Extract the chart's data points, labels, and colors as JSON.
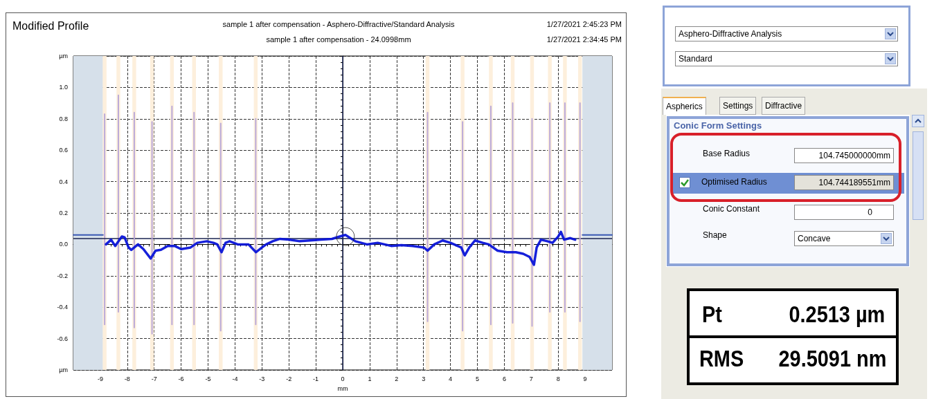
{
  "chart_data": [
    {
      "type": "line",
      "title": "Modified Profile",
      "subtitle": "sample 1 after compensation - Asphero-Diffractive/Standard Analysis\nsample 1 after compensation - 24.0998mm",
      "xlabel": "mm",
      "annotations": [
        "1/27/2021 2:45:23 PM",
        "1/27/2021 2:34:45 PM"
      ],
      "xlim": [
        -10,
        10
      ],
      "xticks": [
        -9,
        -8,
        -7,
        -6,
        -5,
        -4,
        -3,
        -2,
        -1,
        0,
        1,
        2,
        3,
        4,
        5,
        6,
        7,
        8,
        9
      ],
      "ylim": [
        -0.8,
        1.2
      ],
      "yticks": [
        {
          "value": -0.8,
          "label": "µm"
        },
        -0.6,
        -0.4,
        -0.2,
        {
          "value": 0,
          "label": "0.0"
        },
        0.2,
        0.4,
        0.6,
        0.8,
        {
          "value": 1,
          "label": "1.0"
        },
        {
          "value": 1.2,
          "label": "µm"
        }
      ],
      "grid": true,
      "line_style": "solid",
      "marker": "none",
      "ref_lines": [
        {
          "axis": "x",
          "value": 0,
          "color": "#1a2350"
        },
        {
          "axis": "y",
          "value": 0.045,
          "color": "#1a2350"
        }
      ],
      "bands": [
        {
          "axis": "x",
          "from": -10,
          "to": -8.9,
          "color": "#d6e0ea"
        },
        {
          "axis": "x",
          "from": 8.9,
          "to": 10,
          "color": "#d6e0ea"
        },
        {
          "axis": "x",
          "from": -8.91,
          "to": -8.77,
          "color": "#fdefdc"
        },
        {
          "axis": "x",
          "from": -8.4,
          "to": -8.26,
          "color": "#fdefdc"
        },
        {
          "axis": "x",
          "from": -7.81,
          "to": -7.67,
          "color": "#fdefdc"
        },
        {
          "axis": "x",
          "from": -7.15,
          "to": -7.01,
          "color": "#fdefdc"
        },
        {
          "axis": "x",
          "from": -6.41,
          "to": -6.27,
          "color": "#fdefdc"
        },
        {
          "axis": "x",
          "from": -5.59,
          "to": -5.45,
          "color": "#fdefdc"
        },
        {
          "axis": "x",
          "from": -4.6,
          "to": -4.46,
          "color": "#fdefdc"
        },
        {
          "axis": "x",
          "from": -3.3,
          "to": -3.16,
          "color": "#fdefdc"
        },
        {
          "axis": "x",
          "from": 3.08,
          "to": 3.22,
          "color": "#fdefdc"
        },
        {
          "axis": "x",
          "from": 4.38,
          "to": 4.52,
          "color": "#fdefdc"
        },
        {
          "axis": "x",
          "from": 5.43,
          "to": 5.57,
          "color": "#fdefdc"
        },
        {
          "axis": "x",
          "from": 6.24,
          "to": 6.38,
          "color": "#fdefdc"
        },
        {
          "axis": "x",
          "from": 6.96,
          "to": 7.1,
          "color": "#fdefdc"
        },
        {
          "axis": "x",
          "from": 7.62,
          "to": 7.76,
          "color": "#fdefdc"
        },
        {
          "axis": "x",
          "from": 8.18,
          "to": 8.32,
          "color": "#fdefdc"
        },
        {
          "axis": "x",
          "from": 8.74,
          "to": 8.88,
          "color": "#fdefdc"
        }
      ],
      "series": [
        {
          "type": "line",
          "color": "#b7a5d8",
          "x": [
            -8.84,
            -8.84
          ],
          "values": [
            0.83,
            -0.51
          ]
        },
        {
          "type": "line",
          "color": "#b7a5d8",
          "x": [
            -8.33,
            -8.33
          ],
          "values": [
            0.95,
            -0.43
          ]
        },
        {
          "type": "line",
          "color": "#b7a5d8",
          "x": [
            -7.74,
            -7.74
          ],
          "values": [
            0.84,
            -0.53
          ]
        },
        {
          "type": "line",
          "color": "#b7a5d8",
          "x": [
            -7.08,
            -7.08
          ],
          "values": [
            0.78,
            -0.57
          ]
        },
        {
          "type": "line",
          "color": "#b7a5d8",
          "x": [
            -6.34,
            -6.34
          ],
          "values": [
            0.88,
            -0.51
          ]
        },
        {
          "type": "line",
          "color": "#b7a5d8",
          "x": [
            -5.52,
            -5.52
          ],
          "values": [
            0.84,
            -0.51
          ]
        },
        {
          "type": "line",
          "color": "#b7a5d8",
          "x": [
            -4.53,
            -4.53
          ],
          "values": [
            0.77,
            -0.55
          ]
        },
        {
          "type": "line",
          "color": "#b7a5d8",
          "x": [
            -3.23,
            -3.23
          ],
          "values": [
            0.8,
            -0.51
          ]
        },
        {
          "type": "line",
          "color": "#b7a5d8",
          "x": [
            3.15,
            3.15
          ],
          "values": [
            0.84,
            -0.49
          ]
        },
        {
          "type": "line",
          "color": "#b7a5d8",
          "x": [
            4.45,
            4.45
          ],
          "values": [
            0.78,
            -0.55
          ]
        },
        {
          "type": "line",
          "color": "#b7a5d8",
          "x": [
            5.5,
            5.5
          ],
          "values": [
            0.88,
            -0.51
          ]
        },
        {
          "type": "line",
          "color": "#b7a5d8",
          "x": [
            6.31,
            6.31
          ],
          "values": [
            0.9,
            -0.5
          ]
        },
        {
          "type": "line",
          "color": "#b7a5d8",
          "x": [
            7.03,
            7.03
          ],
          "values": [
            0.8,
            -0.52
          ]
        },
        {
          "type": "line",
          "color": "#b7a5d8",
          "x": [
            7.69,
            7.69
          ],
          "values": [
            0.9,
            -0.43
          ]
        },
        {
          "type": "line",
          "color": "#b7a5d8",
          "x": [
            8.25,
            8.25
          ],
          "values": [
            0.9,
            -0.43
          ]
        },
        {
          "type": "line",
          "color": "#b7a5d8",
          "x": [
            8.81,
            8.81
          ],
          "values": [
            0.9,
            -0.49
          ]
        },
        {
          "type": "line",
          "color": "#0a14d8",
          "x": [
            -8.79,
            -8.6,
            -8.45,
            -8.2,
            -8.1,
            -7.95,
            -7.85,
            -7.6,
            -7.4,
            -7.13,
            -6.95,
            -6.75,
            -6.5,
            -6.24,
            -6.0,
            -5.65,
            -5.4,
            -5.05,
            -4.8,
            -4.66,
            -4.5,
            -4.35,
            -4.2,
            -3.9,
            -3.5,
            -3.22,
            -3.0,
            -2.84,
            -2.6,
            -2.33,
            -2.0,
            -1.6,
            -1.22,
            -0.8,
            -0.4,
            -0.11,
            0.1,
            0.47,
            0.9,
            1.3,
            1.8,
            2.18,
            2.6,
            3.02,
            3.15,
            3.4,
            3.71,
            4.0,
            4.4,
            4.53,
            4.7,
            4.91,
            5.2,
            5.42,
            5.75,
            6.1,
            6.43,
            6.7,
            6.94,
            7.1,
            7.2,
            7.36,
            7.6,
            7.79,
            8.0,
            8.1,
            8.22,
            8.45,
            8.63
          ],
          "values": [
            0.0,
            0.03,
            -0.01,
            0.05,
            0.045,
            -0.02,
            -0.035,
            0.0,
            -0.03,
            -0.09,
            -0.04,
            -0.035,
            -0.01,
            -0.01,
            -0.03,
            -0.02,
            0.01,
            0.02,
            0.01,
            0.0,
            -0.05,
            0.01,
            0.02,
            0.0,
            0.0,
            -0.05,
            -0.02,
            0.0,
            0.02,
            0.035,
            0.03,
            0.02,
            0.025,
            0.03,
            0.035,
            0.05,
            0.06,
            0.02,
            0.0,
            0.01,
            -0.01,
            -0.005,
            -0.01,
            -0.02,
            -0.04,
            0.0,
            0.025,
            0.01,
            -0.02,
            -0.07,
            -0.02,
            0.025,
            0.01,
            0.0,
            -0.04,
            -0.05,
            -0.05,
            -0.06,
            -0.08,
            -0.13,
            -0.02,
            0.03,
            0.02,
            0.01,
            0.05,
            0.08,
            0.03,
            0.04,
            0.03
          ]
        },
        {
          "type": "line",
          "color": "#3050b0",
          "x": [
            -10,
            -8.9,
            0,
            8.9,
            10
          ],
          "values": [
            0.06,
            0.06,
            null,
            0.06,
            0.06
          ]
        },
        {
          "type": "scatter",
          "marker": "circle",
          "color": "#202020",
          "x": [
            0.1
          ],
          "values": [
            0.05
          ]
        }
      ]
    },
    {
      "type": "other",
      "annotations": [
        "Asphero-Diffractive Analysis",
        "Standard",
        "Aspherics",
        "Settings",
        "Diffractive",
        "Conic Form Settings",
        "Base Radius",
        "104.745000000mm",
        "Optimised Radius",
        "104.744189551mm",
        "Conic Constant",
        "0",
        "Shape",
        "Concave",
        "Pt",
        "0.2513 µm",
        "RMS",
        "29.5091 nm"
      ]
    }
  ]
}
